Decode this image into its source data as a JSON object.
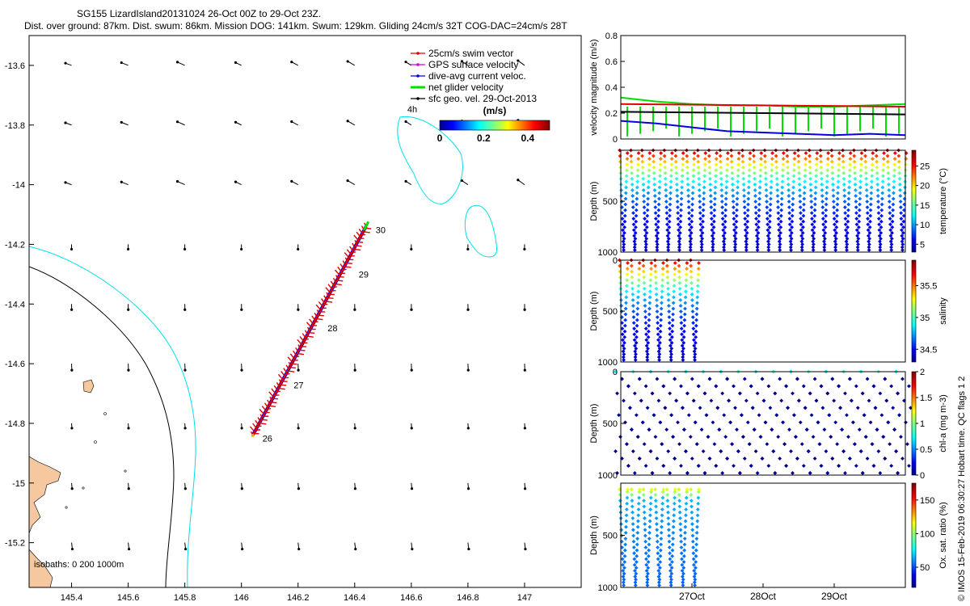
{
  "header": {
    "title": "SG155 LizardIsland20131024 26-Oct 00Z to 29-Oct 23Z.",
    "subtitle": "Dist. over ground: 87km. Dist. swum: 86km. Mission DOG: 141km. Swum: 129km. Gliding 24cm/s 32T COG-DAC=24cm/s 28T"
  },
  "footer_note": "© IMOS 15-Feb-2019 06:30:27 Hobart time. QC flags 1 2",
  "colors": {
    "land": "#f6c8a0",
    "isobath_200": "#000000",
    "isobath_1000": "#00e0e8",
    "swim_vector": "#e00000",
    "gps_surface": "#d400d4",
    "dive_avg": "#0000e0",
    "net_glider": "#00e000",
    "sfc_geo": "#000000"
  },
  "chart_data": [
    {
      "type": "map",
      "id": "track-map",
      "x_ticks": [
        "145.4",
        "145.6",
        "145.8",
        "146",
        "146.2",
        "146.4",
        "146.6",
        "146.8",
        "147"
      ],
      "x_tick_values": [
        145.4,
        145.6,
        145.8,
        146,
        146.2,
        146.4,
        146.6,
        146.8,
        147
      ],
      "y_ticks": [
        "-13.6",
        "-13.8",
        "-14",
        "-14.2",
        "-14.4",
        "-14.6",
        "-14.8",
        "-15",
        "-15.2"
      ],
      "y_tick_values": [
        -13.6,
        -13.8,
        -14,
        -14.2,
        -14.4,
        -14.6,
        -14.8,
        -15,
        -15.2
      ],
      "xlim": [
        145.25,
        147.2
      ],
      "ylim": [
        -15.35,
        -13.5
      ],
      "legend": {
        "placement": "top-right",
        "entries": [
          {
            "label": "25cm/s swim vector",
            "color": "#e00000"
          },
          {
            "label": "GPS surface velocity",
            "color": "#d400d4"
          },
          {
            "label": "dive-avg current veloc.",
            "color": "#0000e0"
          },
          {
            "label": "net glider velocity",
            "color": "#00e000"
          },
          {
            "label": "sfc geo. vel. 29-Oct-2013",
            "color": "#000000"
          }
        ]
      },
      "colorbar": {
        "label": "(m/s)",
        "ticks": [
          "0",
          "0.2",
          "0.4"
        ],
        "tick_values": [
          0,
          0.2,
          0.4
        ],
        "range": [
          0,
          0.5
        ],
        "age_label": "4h"
      },
      "isobaths_label": "isobaths: 0   200  1000m",
      "track": {
        "start": {
          "lon": 146.04,
          "lat": -14.84
        },
        "end": {
          "lon": 146.44,
          "lat": -14.14
        },
        "day_labels": [
          {
            "label": "26",
            "lon": 146.04,
            "lat": -14.84
          },
          {
            "label": "27",
            "lon": 146.15,
            "lat": -14.66
          },
          {
            "label": "28",
            "lon": 146.27,
            "lat": -14.47
          },
          {
            "label": "29",
            "lon": 146.38,
            "lat": -14.29
          },
          {
            "label": "30",
            "lon": 146.44,
            "lat": -14.14
          }
        ]
      },
      "vector_grid": {
        "lons": [
          145.4,
          145.6,
          145.8,
          146,
          146.2,
          146.4,
          146.6,
          146.8,
          147
        ],
        "lats": [
          -13.6,
          -13.8,
          -14,
          -14.2,
          -14.4,
          -14.6,
          -14.8,
          -15,
          -15.2
        ]
      }
    },
    {
      "type": "line",
      "id": "velocity-panel",
      "ylabel": "velocity magnitude (m/s)",
      "y_ticks": [
        "0",
        "0.2",
        "0.4",
        "0.6",
        "0.8"
      ],
      "ylim": [
        0,
        0.8
      ],
      "xlim": [
        0,
        4
      ],
      "series": [
        {
          "color": "#00e000",
          "x": [
            0,
            0.5,
            1,
            1.5,
            2,
            2.5,
            3,
            3.5,
            4
          ],
          "values": [
            0.32,
            0.29,
            0.27,
            0.26,
            0.26,
            0.25,
            0.25,
            0.26,
            0.27
          ]
        },
        {
          "color": "#e00000",
          "x": [
            0,
            4
          ],
          "values": [
            0.27,
            0.25
          ]
        },
        {
          "color": "#000000",
          "x": [
            0,
            4
          ],
          "values": [
            0.21,
            0.19
          ]
        },
        {
          "color": "#0000e0",
          "x": [
            0,
            0.5,
            1,
            1.5,
            2,
            2.5,
            3,
            3.5,
            4
          ],
          "values": [
            0.14,
            0.12,
            0.09,
            0.06,
            0.05,
            0.04,
            0.03,
            0.04,
            0.03
          ]
        }
      ]
    },
    {
      "type": "scatter",
      "id": "temperature-panel",
      "ylabel": "Depth (m)",
      "y_ticks": [
        "500",
        "1000"
      ],
      "ylim": [
        1000,
        0
      ],
      "xlim": [
        0,
        4
      ],
      "colorbar": {
        "label": "temperature (°C)",
        "ticks": [
          "5",
          "10",
          "15",
          "20",
          "25"
        ],
        "range": [
          3,
          29
        ]
      },
      "profiles": {
        "x_start": 0.04,
        "x_end": 3.96,
        "count": 26,
        "max_depth": 990
      }
    },
    {
      "type": "scatter",
      "id": "salinity-panel",
      "ylabel": "Depth (m)",
      "y_ticks": [
        "0",
        "500",
        "1000"
      ],
      "ylim": [
        1000,
        0
      ],
      "xlim": [
        0,
        4
      ],
      "colorbar": {
        "label": "salinity",
        "ticks": [
          "34.5",
          "35",
          "35.5"
        ],
        "range": [
          34.3,
          35.9
        ]
      },
      "profiles": {
        "x_start": 0.04,
        "x_end": 1.04,
        "count": 7,
        "max_depth": 990
      }
    },
    {
      "type": "scatter",
      "id": "chla-panel",
      "ylabel": "Depth (m)",
      "y_ticks": [
        "0",
        "500",
        "1000"
      ],
      "ylim": [
        1000,
        0
      ],
      "xlim": [
        0,
        4
      ],
      "colorbar": {
        "label": "chl-a (mg m-3)",
        "ticks": [
          "0",
          "0.5",
          "1",
          "1.5",
          "2"
        ],
        "range": [
          0,
          2
        ]
      },
      "profiles": {
        "x_start": 0.04,
        "x_end": 3.96,
        "count": 26,
        "max_depth": 990
      }
    },
    {
      "type": "scatter",
      "id": "oxygen-panel",
      "ylabel": "Depth (m)",
      "y_ticks": [
        "500",
        "1000"
      ],
      "ylim": [
        1000,
        0
      ],
      "xlim": [
        0,
        4
      ],
      "x_ticks": [
        "27Oct",
        "28Oct",
        "29Oct"
      ],
      "x_tick_values": [
        1,
        2,
        3
      ],
      "colorbar": {
        "label": "Ox. sat. ratio (%)",
        "ticks": [
          "50",
          "100",
          "150"
        ],
        "range": [
          20,
          175
        ]
      },
      "profiles": {
        "x_start": 0.04,
        "x_end": 1.04,
        "count": 7,
        "max_depth": 990
      }
    }
  ]
}
